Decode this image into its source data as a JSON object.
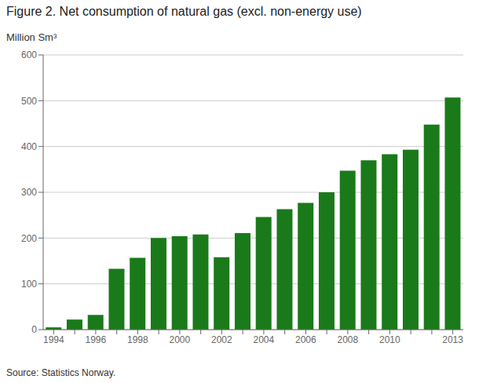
{
  "chart_data": {
    "type": "bar",
    "title": "Figure 2. Net consumption of natural gas (excl. non-energy use)",
    "ylabel": "Million Sm³",
    "annotations": [
      "Source: Statistics Norway."
    ],
    "categories": [
      "1994",
      null,
      "1996",
      null,
      "1998",
      null,
      "2000",
      null,
      "2002",
      null,
      "2004",
      null,
      "2006",
      null,
      "2008",
      null,
      "2010",
      null,
      null,
      "2013"
    ],
    "values": [
      5,
      22,
      32,
      133,
      157,
      200,
      204,
      208,
      158,
      211,
      246,
      263,
      277,
      300,
      347,
      370,
      383,
      393,
      448,
      507
    ],
    "color": "#1a7a1a",
    "ylim": [
      0,
      600
    ],
    "yticks": [
      0,
      100,
      200,
      300,
      400,
      500,
      600
    ],
    "grid": true
  }
}
